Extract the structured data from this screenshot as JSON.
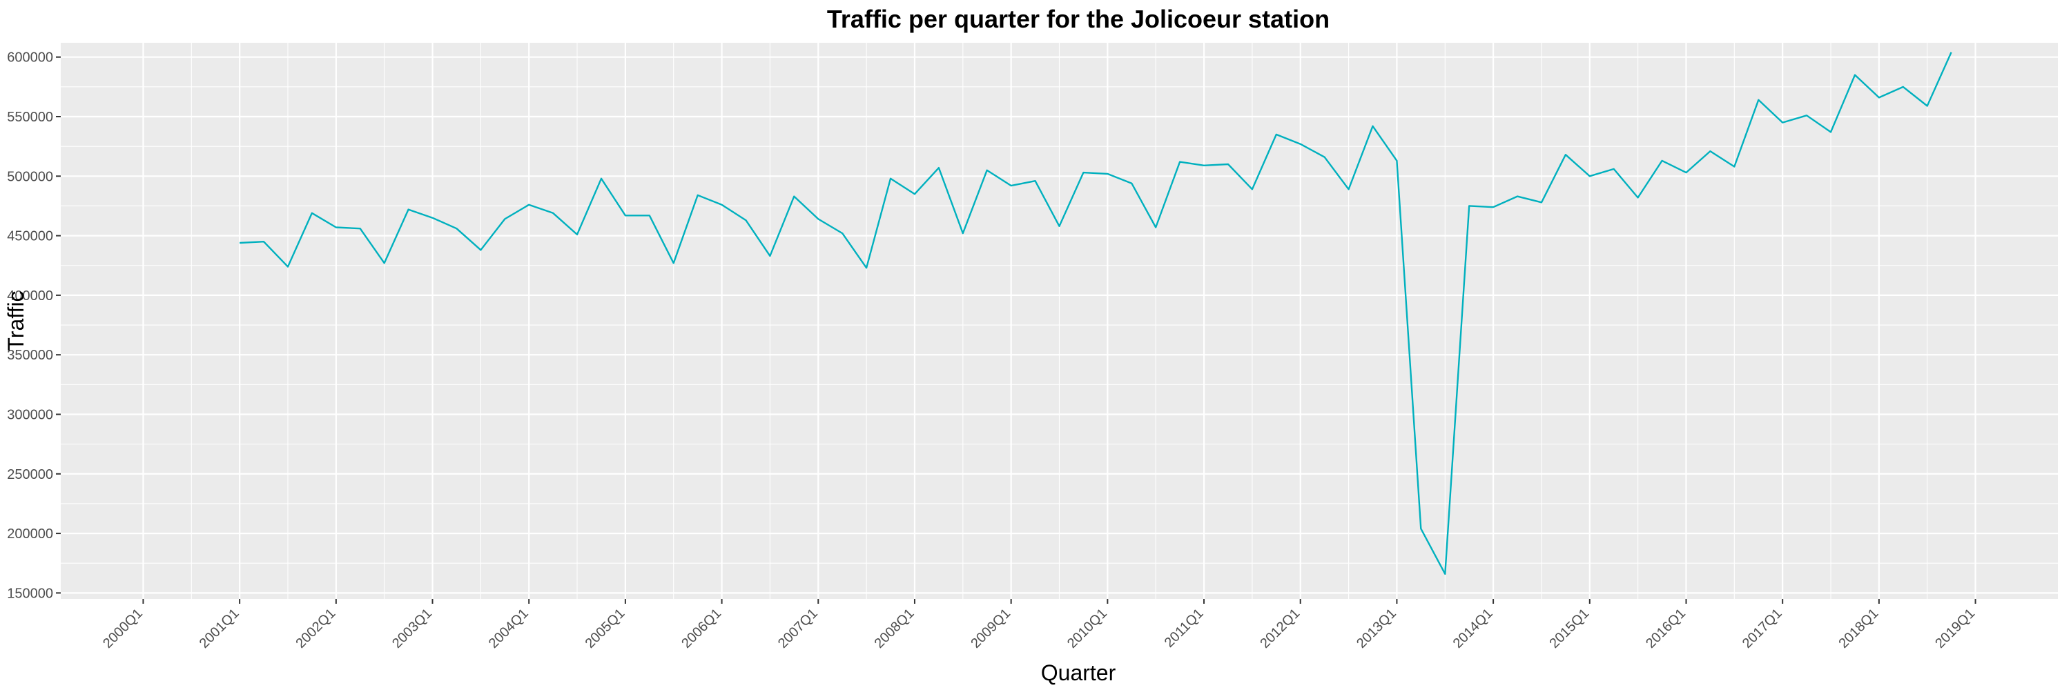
{
  "chart_data": {
    "type": "line",
    "title": "Traffic per quarter for the Jolicoeur station",
    "xlabel": "Quarter",
    "ylabel": "Traffic",
    "ylim": [
      145000,
      612000
    ],
    "xlim": [
      "2000Q1",
      "2019Q1"
    ],
    "grid": true,
    "legend": "none",
    "colors": {
      "line": "#00B0BE",
      "panel": "#EBEBEB",
      "grid": "#FFFFFF",
      "text": "#4D4D4D"
    },
    "x_tick_labels": [
      "2000Q1",
      "2001Q1",
      "2002Q1",
      "2003Q1",
      "2004Q1",
      "2005Q1",
      "2006Q1",
      "2007Q1",
      "2008Q1",
      "2009Q1",
      "2010Q1",
      "2011Q1",
      "2012Q1",
      "2013Q1",
      "2014Q1",
      "2015Q1",
      "2016Q1",
      "2017Q1",
      "2018Q1",
      "2019Q1"
    ],
    "y_tick_labels": [
      "150000",
      "200000",
      "250000",
      "300000",
      "350000",
      "400000",
      "450000",
      "500000",
      "550000",
      "600000"
    ],
    "y_tick_values": [
      150000,
      200000,
      250000,
      300000,
      350000,
      400000,
      450000,
      500000,
      550000,
      600000
    ],
    "series": [
      {
        "x": [
          "2001Q1",
          "2001Q2",
          "2001Q3",
          "2001Q4",
          "2002Q1",
          "2002Q2",
          "2002Q3",
          "2002Q4",
          "2003Q1",
          "2003Q2",
          "2003Q3",
          "2003Q4",
          "2004Q1",
          "2004Q2",
          "2004Q3",
          "2004Q4",
          "2005Q1",
          "2005Q2",
          "2005Q3",
          "2005Q4",
          "2006Q1",
          "2006Q2",
          "2006Q3",
          "2006Q4",
          "2007Q1",
          "2007Q2",
          "2007Q3",
          "2007Q4",
          "2008Q1",
          "2008Q2",
          "2008Q3",
          "2008Q4",
          "2009Q1",
          "2009Q2",
          "2009Q3",
          "2009Q4",
          "2010Q1",
          "2010Q2",
          "2010Q3",
          "2010Q4",
          "2011Q1",
          "2011Q2",
          "2011Q3",
          "2011Q4",
          "2012Q1",
          "2012Q2",
          "2012Q3",
          "2012Q4",
          "2013Q1",
          "2013Q2",
          "2013Q3",
          "2013Q4",
          "2014Q1",
          "2014Q2",
          "2014Q3",
          "2014Q4",
          "2015Q1",
          "2015Q2",
          "2015Q3",
          "2015Q4",
          "2016Q1",
          "2016Q2",
          "2016Q3",
          "2016Q4",
          "2017Q1",
          "2017Q2",
          "2017Q3",
          "2017Q4",
          "2018Q1",
          "2018Q2",
          "2018Q3",
          "2018Q4"
        ],
        "values": [
          444000,
          445000,
          424000,
          469000,
          457000,
          456000,
          427000,
          472000,
          465000,
          456000,
          438000,
          464000,
          476000,
          469000,
          451000,
          498000,
          467000,
          467000,
          427000,
          484000,
          476000,
          463000,
          433000,
          483000,
          464000,
          452000,
          423000,
          498000,
          485000,
          507000,
          452000,
          505000,
          492000,
          496000,
          458000,
          503000,
          502000,
          494000,
          457000,
          512000,
          509000,
          510000,
          489000,
          535000,
          527000,
          516000,
          489000,
          542000,
          513000,
          204000,
          166000,
          475000,
          474000,
          483000,
          478000,
          518000,
          500000,
          506000,
          482000,
          513000,
          503000,
          521000,
          508000,
          564000,
          545000,
          551000,
          537000,
          585000,
          566000,
          575000,
          559000,
          604000
        ]
      }
    ]
  }
}
